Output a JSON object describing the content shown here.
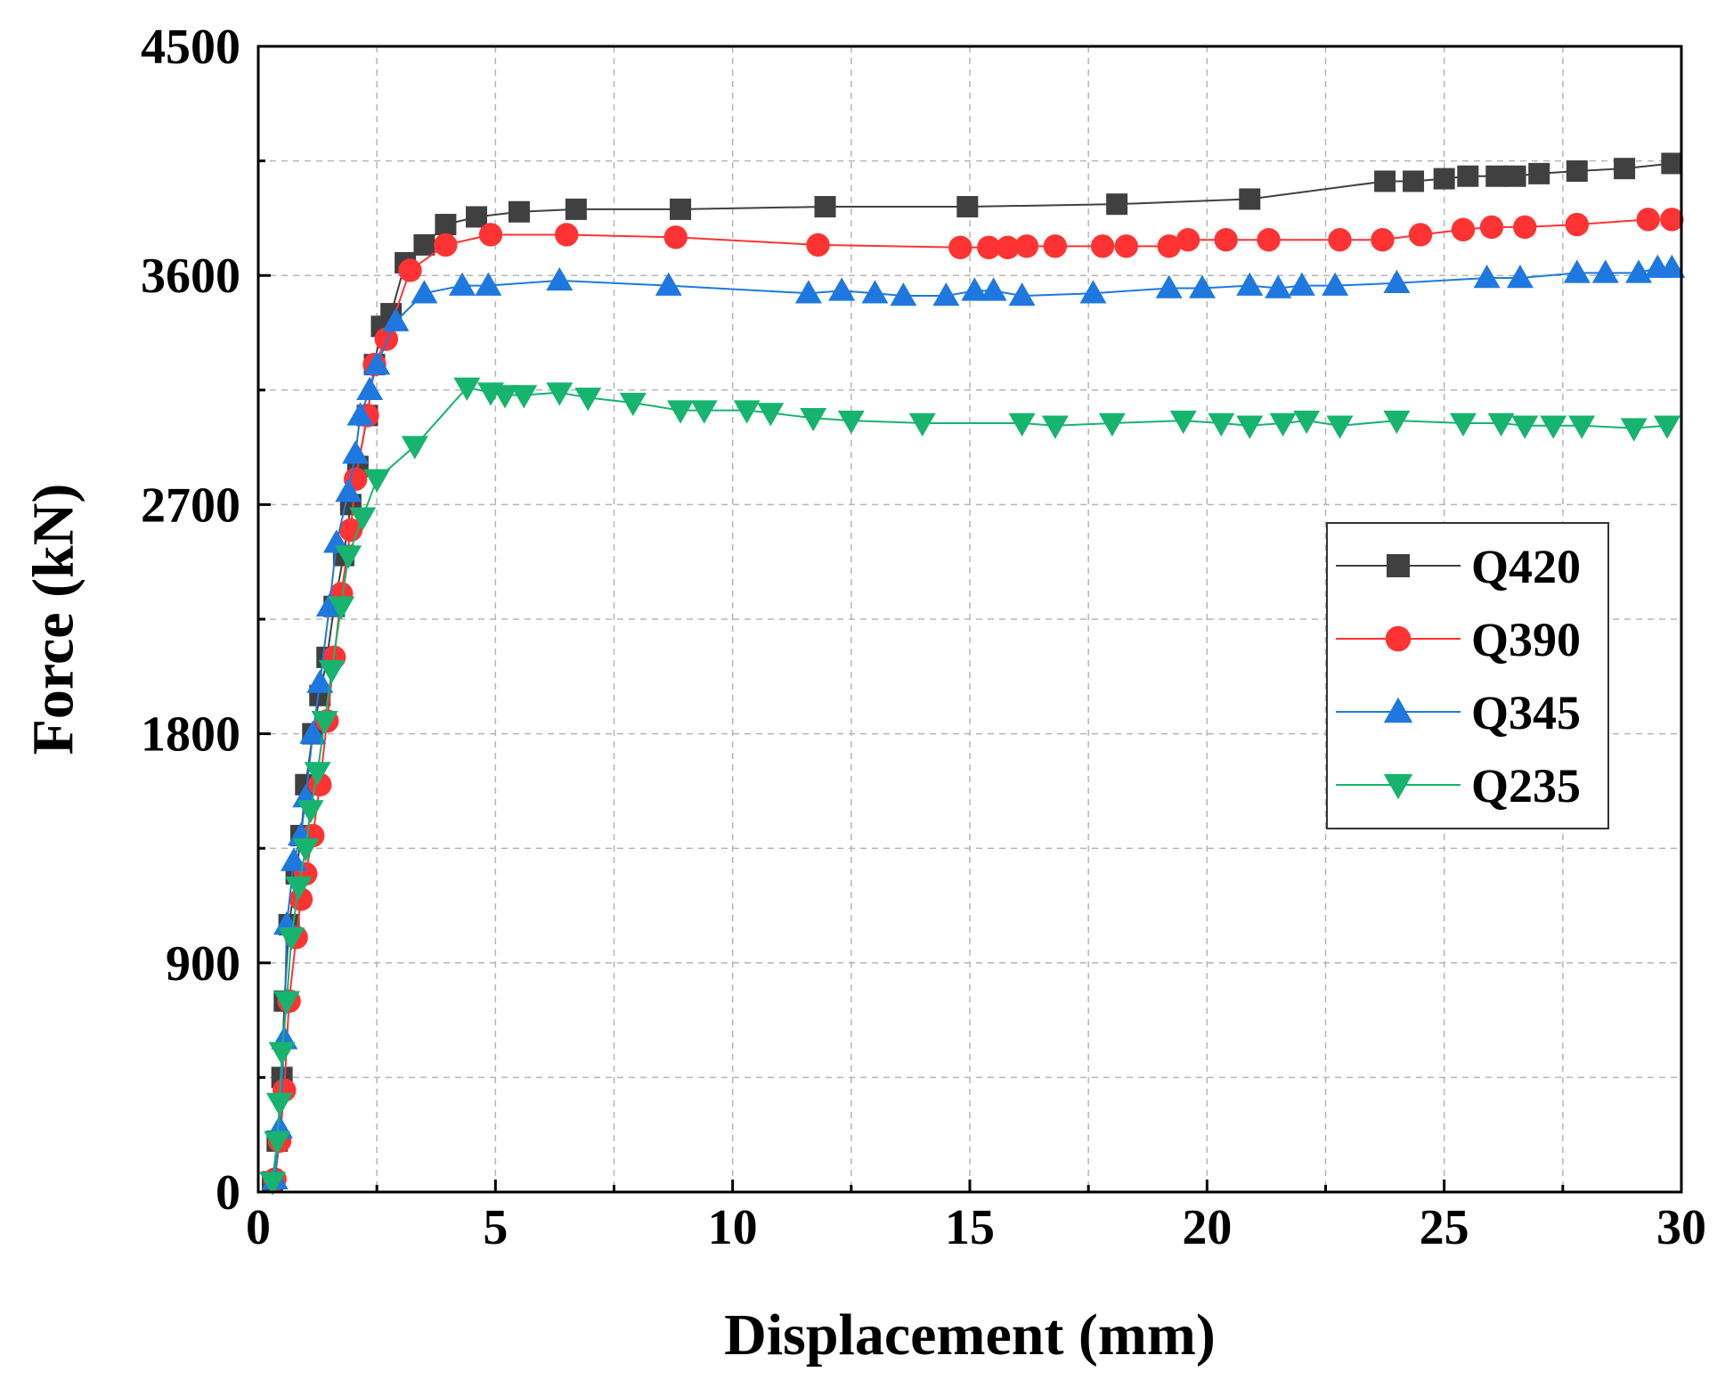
{
  "chart_data": {
    "type": "line",
    "title": "",
    "xlabel": "Displacement (mm)",
    "ylabel": "Force (kN)",
    "xlim": [
      0,
      30
    ],
    "ylim": [
      0,
      4500
    ],
    "xticks": [
      "0",
      "5",
      "10",
      "15",
      "20",
      "25",
      "30"
    ],
    "yticks": [
      "0",
      "900",
      "1800",
      "2700",
      "3600",
      "4500"
    ],
    "grid": true,
    "legend_position": "center-right",
    "series": [
      {
        "name": "Q420",
        "color": "#404040",
        "marker": "square",
        "x": [
          0.3,
          0.4,
          0.5,
          0.55,
          0.65,
          0.8,
          0.9,
          1.0,
          1.15,
          1.3,
          1.45,
          1.6,
          1.8,
          1.95,
          2.1,
          2.3,
          2.45,
          2.6,
          2.8,
          3.1,
          3.5,
          3.95,
          4.6,
          5.5,
          6.7,
          8.9,
          11.95,
          14.95,
          18.1,
          20.9,
          23.75,
          24.35,
          25.0,
          25.5,
          26.1,
          26.5,
          27.0,
          27.8,
          28.8,
          29.8
        ],
        "y": [
          40,
          200,
          450,
          750,
          1050,
          1250,
          1400,
          1600,
          1800,
          1950,
          2100,
          2300,
          2500,
          2700,
          2850,
          3050,
          3250,
          3400,
          3450,
          3650,
          3720,
          3800,
          3830,
          3850,
          3860,
          3860,
          3870,
          3870,
          3880,
          3900,
          3970,
          3970,
          3980,
          3990,
          3990,
          3990,
          4000,
          4010,
          4020,
          4040
        ]
      },
      {
        "name": "Q390",
        "color": "#ff3333",
        "marker": "circle",
        "x": [
          0.35,
          0.45,
          0.55,
          0.65,
          0.8,
          0.9,
          1.0,
          1.15,
          1.3,
          1.45,
          1.6,
          1.75,
          1.95,
          2.05,
          2.3,
          2.45,
          2.7,
          3.2,
          3.95,
          4.9,
          6.5,
          8.8,
          11.8,
          14.8,
          15.4,
          15.8,
          16.2,
          16.8,
          17.8,
          18.3,
          19.2,
          19.6,
          20.4,
          21.3,
          22.8,
          23.7,
          24.5,
          25.4,
          26.0,
          26.7,
          27.8,
          29.3,
          29.8
        ],
        "y": [
          50,
          200,
          400,
          750,
          1000,
          1150,
          1250,
          1400,
          1600,
          1850,
          2100,
          2350,
          2600,
          2800,
          3050,
          3250,
          3350,
          3620,
          3720,
          3760,
          3760,
          3750,
          3720,
          3710,
          3710,
          3710,
          3715,
          3715,
          3715,
          3715,
          3715,
          3740,
          3740,
          3740,
          3740,
          3740,
          3760,
          3780,
          3790,
          3790,
          3800,
          3820,
          3820
        ]
      },
      {
        "name": "Q345",
        "color": "#1f78e0",
        "marker": "triangle-up",
        "x": [
          0.35,
          0.45,
          0.55,
          0.6,
          0.75,
          0.9,
          1.0,
          1.15,
          1.3,
          1.5,
          1.65,
          1.9,
          2.05,
          2.15,
          2.35,
          2.5,
          2.9,
          3.5,
          4.3,
          4.85,
          6.35,
          8.65,
          11.6,
          12.3,
          13.0,
          13.6,
          14.5,
          15.1,
          15.5,
          16.1,
          17.6,
          19.2,
          19.9,
          20.9,
          21.5,
          22.0,
          22.7,
          24.0,
          25.9,
          26.6,
          27.8,
          28.4,
          29.1,
          29.5,
          29.8
        ],
        "y": [
          50,
          250,
          600,
          1050,
          1300,
          1400,
          1550,
          1800,
          2000,
          2300,
          2550,
          2750,
          2900,
          3050,
          3150,
          3250,
          3420,
          3530,
          3560,
          3560,
          3580,
          3560,
          3530,
          3540,
          3530,
          3520,
          3520,
          3540,
          3540,
          3520,
          3530,
          3550,
          3550,
          3560,
          3550,
          3560,
          3560,
          3570,
          3590,
          3590,
          3610,
          3610,
          3610,
          3630,
          3630
        ]
      },
      {
        "name": "Q235",
        "color": "#16b46e",
        "marker": "triangle-down",
        "x": [
          0.3,
          0.4,
          0.45,
          0.5,
          0.6,
          0.7,
          0.85,
          1.0,
          1.1,
          1.25,
          1.4,
          1.55,
          1.75,
          1.9,
          2.2,
          2.5,
          3.3,
          4.4,
          4.9,
          5.2,
          5.6,
          6.35,
          6.95,
          7.9,
          8.9,
          9.4,
          10.3,
          10.8,
          11.7,
          12.5,
          14.0,
          16.1,
          16.8,
          18.0,
          19.5,
          20.3,
          20.9,
          21.6,
          22.1,
          22.8,
          24.0,
          25.4,
          26.2,
          26.7,
          27.3,
          27.9,
          29.0,
          29.7
        ],
        "y": [
          40,
          200,
          350,
          550,
          750,
          1000,
          1200,
          1350,
          1500,
          1650,
          1850,
          2050,
          2300,
          2500,
          2650,
          2800,
          2930,
          3160,
          3140,
          3130,
          3130,
          3140,
          3120,
          3100,
          3070,
          3070,
          3070,
          3060,
          3040,
          3030,
          3020,
          3020,
          3010,
          3020,
          3030,
          3020,
          3010,
          3020,
          3030,
          3010,
          3030,
          3020,
          3020,
          3010,
          3010,
          3010,
          3000,
          3010
        ]
      }
    ]
  }
}
